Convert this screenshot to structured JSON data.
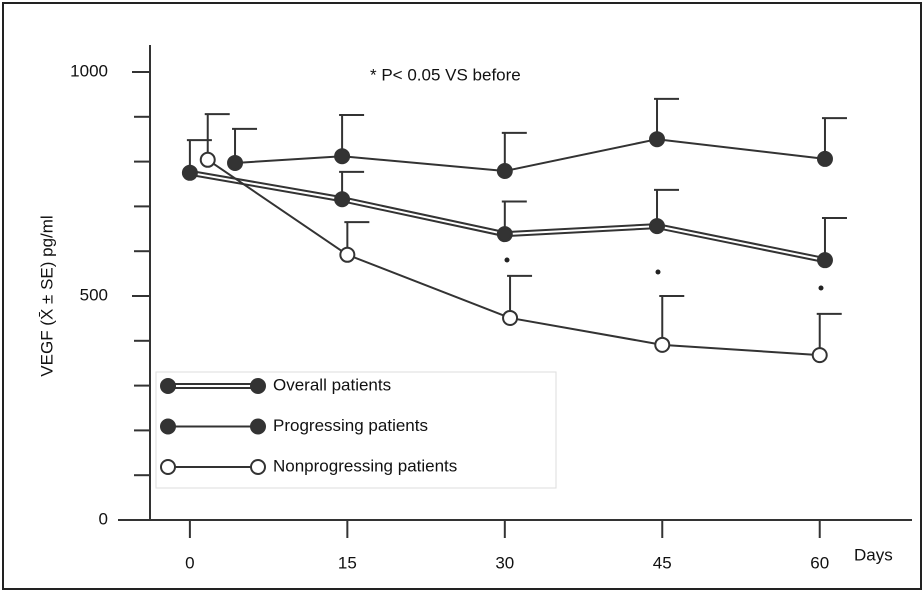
{
  "chart_data": {
    "type": "line",
    "annotation": "* P< 0.05 VS before",
    "x_label": "Days",
    "y_label": "VEGF (X̄ ± SE) pg/ml",
    "xlim": [
      -3.8,
      68.6
    ],
    "xticks": [
      0,
      15,
      30,
      45,
      60
    ],
    "ylim": [
      0,
      1000
    ],
    "yticks": [
      0,
      500,
      1000
    ],
    "y_minor_ticks": [
      100,
      200,
      300,
      400,
      600,
      700,
      800,
      900
    ],
    "line_color": "#333333",
    "series": [
      {
        "name": "Overall patients",
        "style": "double",
        "marker": "filled",
        "x": [
          0,
          14.5,
          30,
          44.5,
          60.5
        ],
        "values": [
          775,
          716,
          638,
          656,
          580
        ],
        "errors": [
          73,
          61,
          73,
          81,
          94
        ]
      },
      {
        "name": "Progressing patients",
        "style": "single",
        "marker": "filled",
        "x": [
          4.3,
          14.5,
          30,
          44.5,
          60.5
        ],
        "values": [
          797,
          812,
          779,
          850,
          806
        ],
        "errors": [
          76,
          92,
          85,
          90,
          91
        ]
      },
      {
        "name": "Nonprogressing patients",
        "style": "single",
        "marker": "open",
        "x": [
          1.7,
          15,
          30.5,
          45,
          60
        ],
        "values": [
          804,
          592,
          451,
          391,
          368
        ],
        "errors": [
          102,
          73,
          94,
          109,
          92
        ]
      }
    ]
  }
}
